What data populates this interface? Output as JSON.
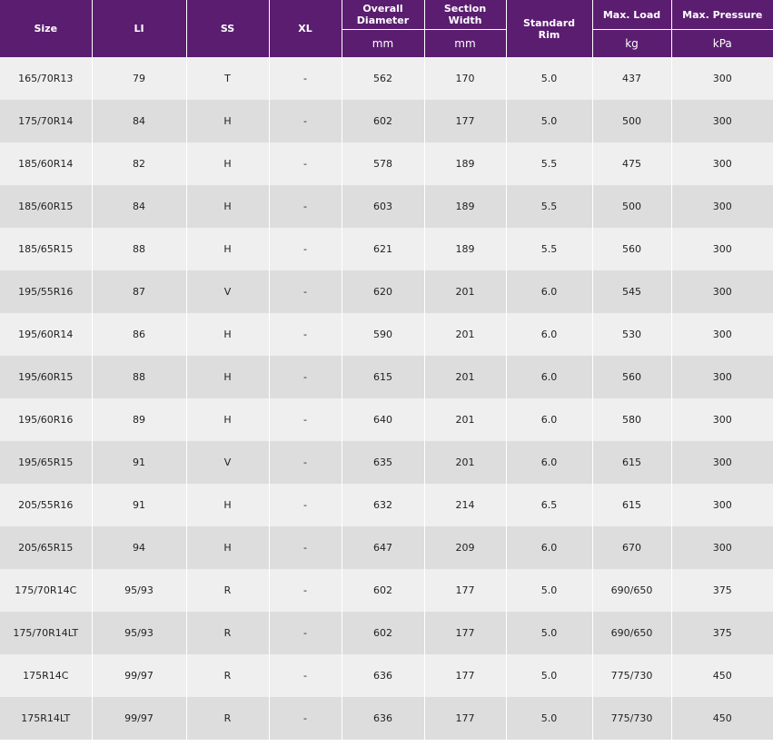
{
  "colors": {
    "header_bg": "#5b1d70",
    "row_light": "#efefef",
    "row_dark": "#dddddd"
  },
  "headers": {
    "size": "Size",
    "li": "LI",
    "ss": "SS",
    "xl": "XL",
    "overall_diameter_line1": "Overall",
    "overall_diameter_line2": "Diameter",
    "section_width_line1": "Section",
    "section_width_line2": "Width",
    "standard_rim_line1": "Standard",
    "standard_rim_line2": "Rim",
    "max_load": "Max. Load",
    "max_pressure": "Max. Pressure",
    "unit_overall_diameter": "mm",
    "unit_section_width": "mm",
    "unit_max_load": "kg",
    "unit_max_pressure": "kPa"
  },
  "rows": [
    {
      "size": "165/70R13",
      "li": "79",
      "ss": "T",
      "xl": "-",
      "od": "562",
      "sw": "170",
      "rim": "5.0",
      "load": "437",
      "pressure": "300"
    },
    {
      "size": "175/70R14",
      "li": "84",
      "ss": "H",
      "xl": "-",
      "od": "602",
      "sw": "177",
      "rim": "5.0",
      "load": "500",
      "pressure": "300"
    },
    {
      "size": "185/60R14",
      "li": "82",
      "ss": "H",
      "xl": "-",
      "od": "578",
      "sw": "189",
      "rim": "5.5",
      "load": "475",
      "pressure": "300"
    },
    {
      "size": "185/60R15",
      "li": "84",
      "ss": "H",
      "xl": "-",
      "od": "603",
      "sw": "189",
      "rim": "5.5",
      "load": "500",
      "pressure": "300"
    },
    {
      "size": "185/65R15",
      "li": "88",
      "ss": "H",
      "xl": "-",
      "od": "621",
      "sw": "189",
      "rim": "5.5",
      "load": "560",
      "pressure": "300"
    },
    {
      "size": "195/55R16",
      "li": "87",
      "ss": "V",
      "xl": "-",
      "od": "620",
      "sw": "201",
      "rim": "6.0",
      "load": "545",
      "pressure": "300"
    },
    {
      "size": "195/60R14",
      "li": "86",
      "ss": "H",
      "xl": "-",
      "od": "590",
      "sw": "201",
      "rim": "6.0",
      "load": "530",
      "pressure": "300"
    },
    {
      "size": "195/60R15",
      "li": "88",
      "ss": "H",
      "xl": "-",
      "od": "615",
      "sw": "201",
      "rim": "6.0",
      "load": "560",
      "pressure": "300"
    },
    {
      "size": "195/60R16",
      "li": "89",
      "ss": "H",
      "xl": "-",
      "od": "640",
      "sw": "201",
      "rim": "6.0",
      "load": "580",
      "pressure": "300"
    },
    {
      "size": "195/65R15",
      "li": "91",
      "ss": "V",
      "xl": "-",
      "od": "635",
      "sw": "201",
      "rim": "6.0",
      "load": "615",
      "pressure": "300"
    },
    {
      "size": "205/55R16",
      "li": "91",
      "ss": "H",
      "xl": "-",
      "od": "632",
      "sw": "214",
      "rim": "6.5",
      "load": "615",
      "pressure": "300"
    },
    {
      "size": "205/65R15",
      "li": "94",
      "ss": "H",
      "xl": "-",
      "od": "647",
      "sw": "209",
      "rim": "6.0",
      "load": "670",
      "pressure": "300"
    },
    {
      "size": "175/70R14C",
      "li": "95/93",
      "ss": "R",
      "xl": "-",
      "od": "602",
      "sw": "177",
      "rim": "5.0",
      "load": "690/650",
      "pressure": "375"
    },
    {
      "size": "175/70R14LT",
      "li": "95/93",
      "ss": "R",
      "xl": "-",
      "od": "602",
      "sw": "177",
      "rim": "5.0",
      "load": "690/650",
      "pressure": "375"
    },
    {
      "size": "175R14C",
      "li": "99/97",
      "ss": "R",
      "xl": "-",
      "od": "636",
      "sw": "177",
      "rim": "5.0",
      "load": "775/730",
      "pressure": "450"
    },
    {
      "size": "175R14LT",
      "li": "99/97",
      "ss": "R",
      "xl": "-",
      "od": "636",
      "sw": "177",
      "rim": "5.0",
      "load": "775/730",
      "pressure": "450"
    }
  ]
}
